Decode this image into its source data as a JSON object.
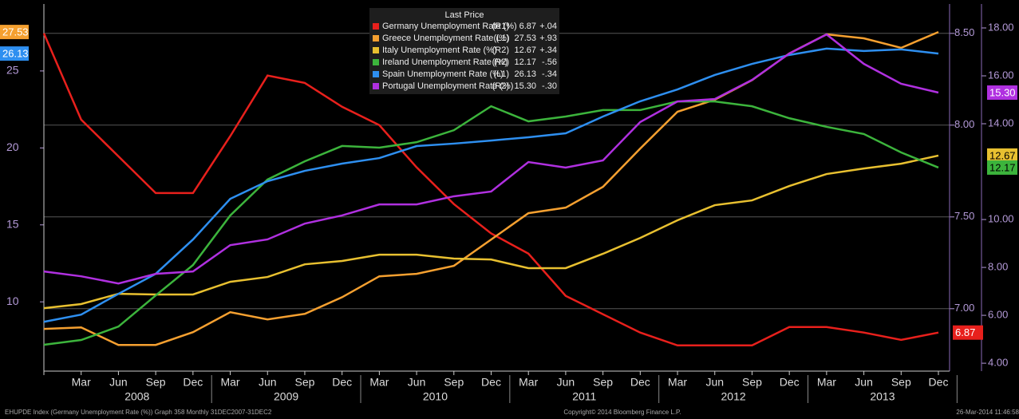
{
  "chart_data": {
    "type": "line",
    "legend_title": "Last Price",
    "categories": [
      null,
      "Mar",
      "Jun",
      "Sep",
      "Dec",
      "Mar",
      "Jun",
      "Sep",
      "Dec",
      "Mar",
      "Jun",
      "Sep",
      "Dec",
      "Mar",
      "Jun",
      "Sep",
      "Dec",
      "Mar",
      "Jun",
      "Sep",
      "Dec",
      "Mar",
      "Jun",
      "Sep",
      "Dec"
    ],
    "years": [
      "2008",
      "2009",
      "2010",
      "2011",
      "2012",
      "2013"
    ],
    "ylim": [
      5.5,
      29.35
    ],
    "yticks": [
      10,
      15,
      20,
      25
    ],
    "y2lim": [
      6.66,
      8.66
    ],
    "y2ticks": [
      {
        "value": 7,
        "label": "7.00"
      },
      {
        "value": 7.5,
        "label": "7.50"
      },
      {
        "value": 8,
        "label": "8.00"
      },
      {
        "value": 8.5,
        "label": "8.50"
      }
    ],
    "y3lim": [
      3.67,
      19.0
    ],
    "y3ticks": [
      {
        "value": 4,
        "label": "4.00"
      },
      {
        "value": 6,
        "label": "6.00"
      },
      {
        "value": 8,
        "label": "8.00"
      },
      {
        "value": 10,
        "label": "10.00"
      },
      {
        "value": 14,
        "label": "14.00"
      },
      {
        "value": 16,
        "label": "16.00"
      },
      {
        "value": 18,
        "label": "18.00"
      }
    ],
    "grid": true,
    "series": [
      {
        "name": "Germany Unemployment Rate (%)",
        "axis_label": "(R1)",
        "axis": "y2",
        "last_price": "6.87",
        "change": "+.04",
        "color": "#e8201c",
        "values": [
          8.5,
          8.03,
          7.83,
          7.63,
          7.63,
          7.94,
          8.27,
          8.23,
          8.1,
          8.0,
          7.77,
          7.57,
          7.41,
          7.3,
          7.07,
          6.97,
          6.87,
          6.8,
          6.8,
          6.8,
          6.9,
          6.9,
          6.87,
          6.83,
          6.87
        ]
      },
      {
        "name": "Greece Unemployment Rate (%)",
        "axis_label": "(L1)",
        "axis": "y",
        "last_price": "27.53",
        "change": "+.93",
        "color": "#f5a030",
        "values": [
          8.24,
          8.34,
          7.2,
          7.2,
          8.03,
          9.33,
          8.86,
          9.22,
          10.3,
          11.66,
          11.82,
          12.34,
          14.05,
          15.76,
          16.12,
          17.47,
          19.96,
          22.35,
          23.13,
          24.4,
          26.14,
          27.38,
          27.12,
          26.5,
          27.53
        ]
      },
      {
        "name": "Italy Unemployment Rate (%)",
        "axis_label": "(R2)",
        "axis": "y3",
        "last_price": "12.67",
        "change": "+.34",
        "color": "#e8c030",
        "values": [
          6.3,
          6.47,
          6.9,
          6.87,
          6.87,
          7.4,
          7.6,
          8.13,
          8.27,
          8.53,
          8.53,
          8.37,
          8.33,
          7.97,
          7.97,
          8.57,
          9.23,
          9.97,
          10.6,
          10.8,
          11.4,
          11.9,
          12.13,
          12.33,
          12.67
        ]
      },
      {
        "name": "Ireland Unemployment Rate (%)",
        "axis_label": "(R2)",
        "axis": "y3",
        "last_price": "12.17",
        "change": "-.56",
        "color": "#3cb43c",
        "values": [
          4.77,
          4.97,
          5.53,
          6.83,
          8.1,
          10.17,
          11.67,
          12.43,
          13.07,
          13.0,
          13.23,
          13.73,
          14.73,
          14.1,
          14.3,
          14.57,
          14.57,
          14.93,
          14.93,
          14.73,
          14.23,
          13.87,
          13.57,
          12.8,
          12.17
        ]
      },
      {
        "name": "Spain Unemployment Rate (%)",
        "axis_label": "(L1)",
        "axis": "y",
        "last_price": "26.13",
        "change": "-.34",
        "color": "#2e8ff0",
        "values": [
          8.7,
          9.17,
          10.52,
          11.82,
          14.05,
          16.69,
          17.84,
          18.51,
          18.98,
          19.34,
          20.12,
          20.28,
          20.48,
          20.69,
          20.95,
          22.04,
          23.03,
          23.8,
          24.74,
          25.46,
          26.04,
          26.45,
          26.3,
          26.4,
          26.13
        ]
      },
      {
        "name": "Portugal Unemployment Rate (%)",
        "axis_label": "(R2)",
        "axis": "y3",
        "last_price": "15.30",
        "change": "-.30",
        "color": "#b030e0",
        "values": [
          7.83,
          7.63,
          7.33,
          7.73,
          7.83,
          8.93,
          9.17,
          9.83,
          10.17,
          10.63,
          10.63,
          10.97,
          11.17,
          12.4,
          12.17,
          12.47,
          14.07,
          14.93,
          15.03,
          15.83,
          16.93,
          17.73,
          16.5,
          15.67,
          15.3
        ]
      }
    ]
  },
  "footer": {
    "left": "EHUPDE Index (Germany Unemployment Rate (%)) Graph 358  Monthly 31DEC2007-31DEC2",
    "center": "Copyright© 2014 Bloomberg Finance L.P.",
    "right": "26-Mar-2014 11:46:58"
  }
}
